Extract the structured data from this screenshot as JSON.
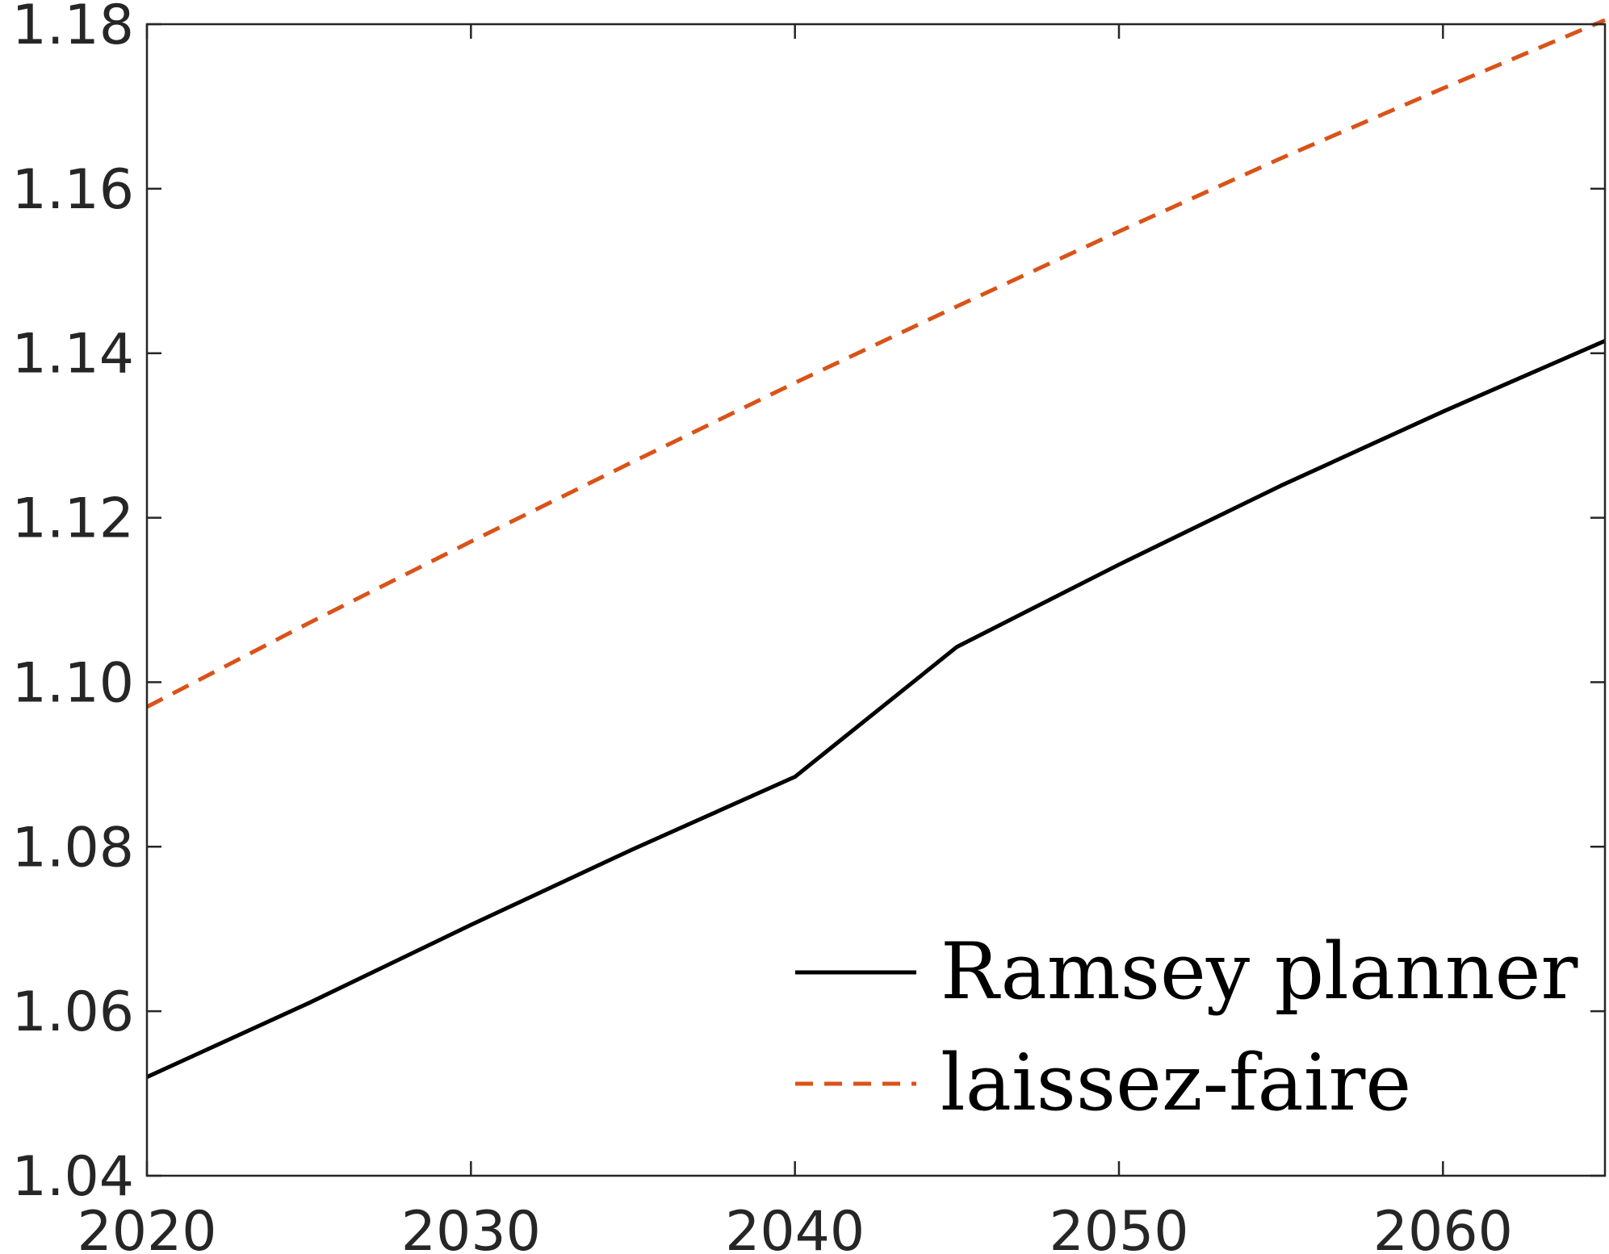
{
  "chart_data": {
    "type": "line",
    "title": "",
    "xlabel": "",
    "ylabel": "",
    "xlim": [
      2020,
      2065
    ],
    "ylim": [
      1.04,
      1.18
    ],
    "x_ticks": [
      2020,
      2030,
      2040,
      2050,
      2060
    ],
    "x_tick_labels": [
      "2020",
      "2030",
      "2040",
      "2050",
      "2060"
    ],
    "y_ticks": [
      1.04,
      1.06,
      1.08,
      1.1,
      1.12,
      1.14,
      1.16,
      1.18
    ],
    "y_tick_labels": [
      "1.04",
      "1.06",
      "1.08",
      "1.10",
      "1.12",
      "1.14",
      "1.16",
      "1.18"
    ],
    "grid": false,
    "legend_position": "bottom-right",
    "x": [
      2020,
      2025,
      2030,
      2035,
      2040,
      2045,
      2050,
      2055,
      2060,
      2065
    ],
    "series": [
      {
        "name": "Ramsey planner",
        "style": "solid",
        "color": "#000000",
        "values": [
          1.052,
          1.061,
          1.0705,
          1.0797,
          1.0885,
          1.1043,
          1.1143,
          1.1239,
          1.1329,
          1.1415
        ]
      },
      {
        "name": "laissez-faire",
        "style": "dashed",
        "color": "#D95319",
        "values": [
          1.097,
          1.1072,
          1.1171,
          1.1268,
          1.1364,
          1.1457,
          1.1548,
          1.1637,
          1.1722,
          1.1805
        ]
      }
    ]
  }
}
